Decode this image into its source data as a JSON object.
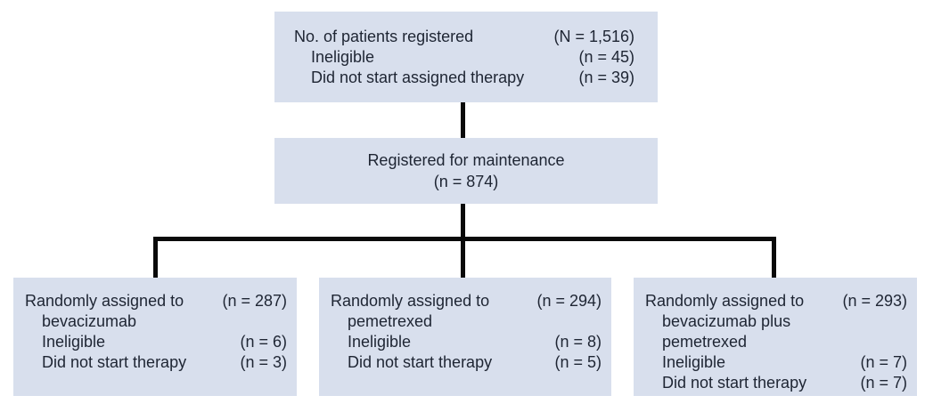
{
  "colors": {
    "background": "#ffffff",
    "box_fill": "#d8dfed",
    "text": "#1e2533",
    "connector": "#0a0a0a"
  },
  "registration_box": {
    "rows": [
      {
        "label": "No. of patients registered",
        "value": "(N = 1,516)"
      },
      {
        "label": "Ineligible",
        "value": "(n = 45)"
      },
      {
        "label": "Did not start assigned therapy",
        "value": "(n = 39)"
      }
    ]
  },
  "maintenance_box": {
    "title": "Registered for maintenance",
    "count": "(n = 874)"
  },
  "arms": [
    {
      "rows": [
        {
          "label": "Randomly assigned to",
          "value": "(n = 287)"
        },
        {
          "label": "bevacizumab",
          "value": ""
        },
        {
          "label": "Ineligible",
          "value": "(n = 6)"
        },
        {
          "label": "Did not start therapy",
          "value": "(n = 3)"
        }
      ]
    },
    {
      "rows": [
        {
          "label": "Randomly assigned to",
          "value": "(n = 294)"
        },
        {
          "label": "pemetrexed",
          "value": ""
        },
        {
          "label": "Ineligible",
          "value": "(n = 8)"
        },
        {
          "label": "Did not start therapy",
          "value": "(n = 5)"
        }
      ]
    },
    {
      "rows": [
        {
          "label": "Randomly assigned to",
          "value": "(n = 293)"
        },
        {
          "label": "bevacizumab plus",
          "value": ""
        },
        {
          "label": "pemetrexed",
          "value": ""
        },
        {
          "label": "Ineligible",
          "value": "(n = 7)"
        },
        {
          "label": "Did not start therapy",
          "value": "(n = 7)"
        }
      ]
    }
  ]
}
